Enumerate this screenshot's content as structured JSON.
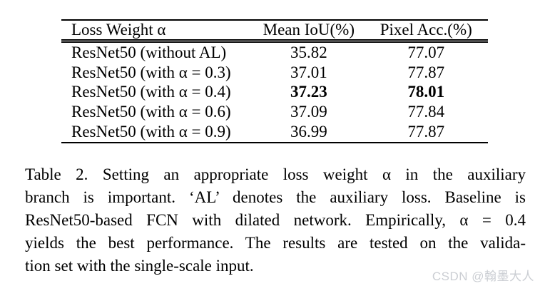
{
  "page": {
    "background_color": "#ffffff",
    "text_color": "#000000"
  },
  "table": {
    "columns": {
      "loss_weight": "Loss Weight α",
      "mean_iou": "Mean IoU(%)",
      "pixel_acc": "Pixel Acc.(%)"
    },
    "rows": [
      {
        "model": "ResNet50 (without AL)",
        "mean_iou": "35.82",
        "pixel_acc": "77.07",
        "bold": false
      },
      {
        "model": "ResNet50 (with α = 0.3)",
        "mean_iou": "37.01",
        "pixel_acc": "77.87",
        "bold": false
      },
      {
        "model": "ResNet50 (with α = 0.4)",
        "mean_iou": "37.23",
        "pixel_acc": "78.01",
        "bold": true
      },
      {
        "model": "ResNet50 (with α = 0.6)",
        "mean_iou": "37.09",
        "pixel_acc": "77.84",
        "bold": false
      },
      {
        "model": "ResNet50 (with α = 0.9)",
        "mean_iou": "36.99",
        "pixel_acc": "77.87",
        "bold": false
      }
    ]
  },
  "caption": {
    "label": "Table 2.",
    "lines": [
      "Table 2.  Setting an appropriate loss weight α in the auxiliary",
      "branch is important.  ‘AL’ denotes the auxiliary loss.  Baseline is",
      "ResNet50-based FCN with dilated network.  Empirically, α = 0.4",
      "yields the best performance.  The results are tested on the valida-",
      "tion set with the single-scale input."
    ]
  },
  "watermark": {
    "text": "CSDN @翰墨大人",
    "color": "#cbced3"
  }
}
